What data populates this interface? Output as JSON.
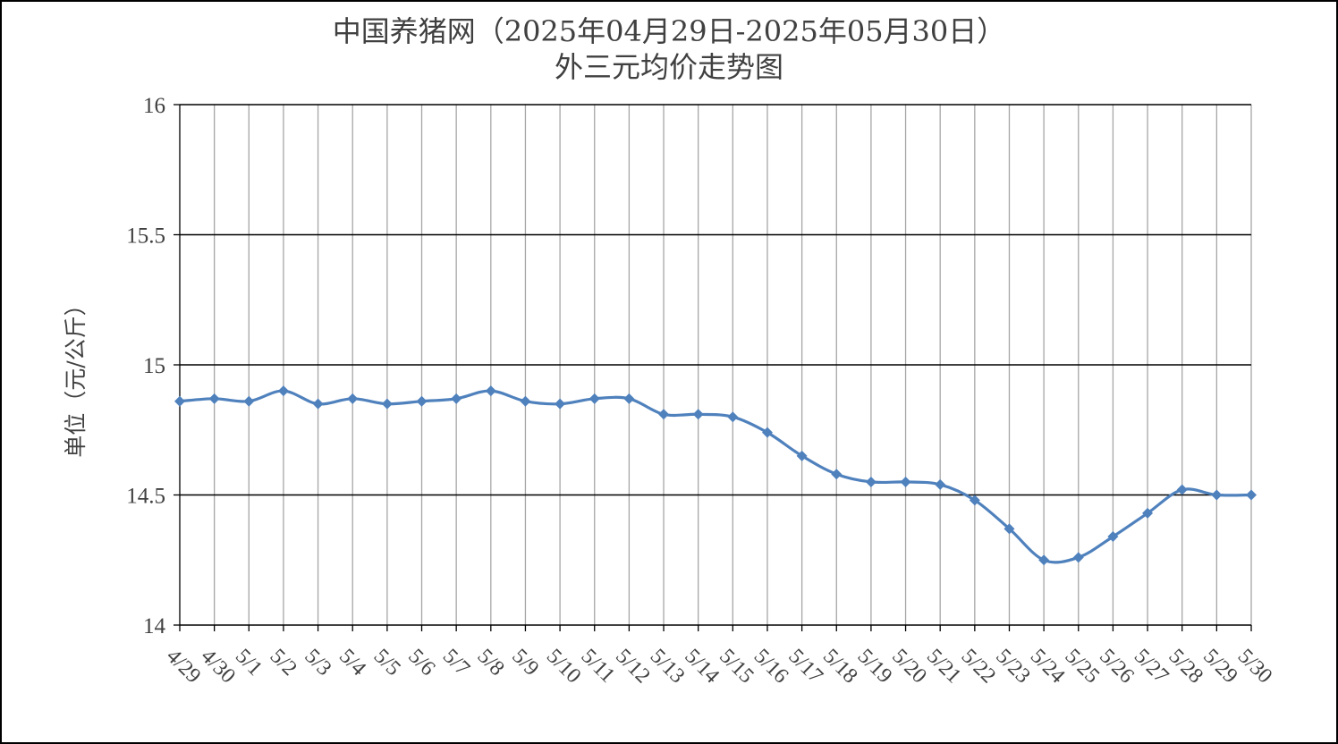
{
  "chart_data": {
    "type": "line",
    "title": "中国养猪网（2025年04月29日-2025年05月30日）",
    "subtitle": "外三元均价走势图",
    "xlabel": "",
    "ylabel": "单位（元/公斤）",
    "ylim": [
      14,
      16
    ],
    "yticks": [
      "14",
      "14.5",
      "15",
      "15.5",
      "16"
    ],
    "categories": [
      "4/29",
      "4/30",
      "5/1",
      "5/2",
      "5/3",
      "5/4",
      "5/5",
      "5/6",
      "5/7",
      "5/8",
      "5/9",
      "5/10",
      "5/11",
      "5/12",
      "5/13",
      "5/14",
      "5/15",
      "5/16",
      "5/17",
      "5/18",
      "5/19",
      "5/20",
      "5/21",
      "5/22",
      "5/23",
      "5/24",
      "5/25",
      "5/26",
      "5/27",
      "5/28",
      "5/29",
      "5/30"
    ],
    "series": [
      {
        "values": [
          14.86,
          14.87,
          14.86,
          14.9,
          14.85,
          14.87,
          14.85,
          14.86,
          14.87,
          14.9,
          14.86,
          14.85,
          14.87,
          14.87,
          14.81,
          14.81,
          14.8,
          14.74,
          14.65,
          14.58,
          14.55,
          14.55,
          14.54,
          14.48,
          14.37,
          14.25,
          14.26,
          14.34,
          14.43,
          14.52,
          14.5,
          14.5
        ],
        "color": "#4F81BD"
      }
    ],
    "grid": true,
    "legend": "none"
  }
}
